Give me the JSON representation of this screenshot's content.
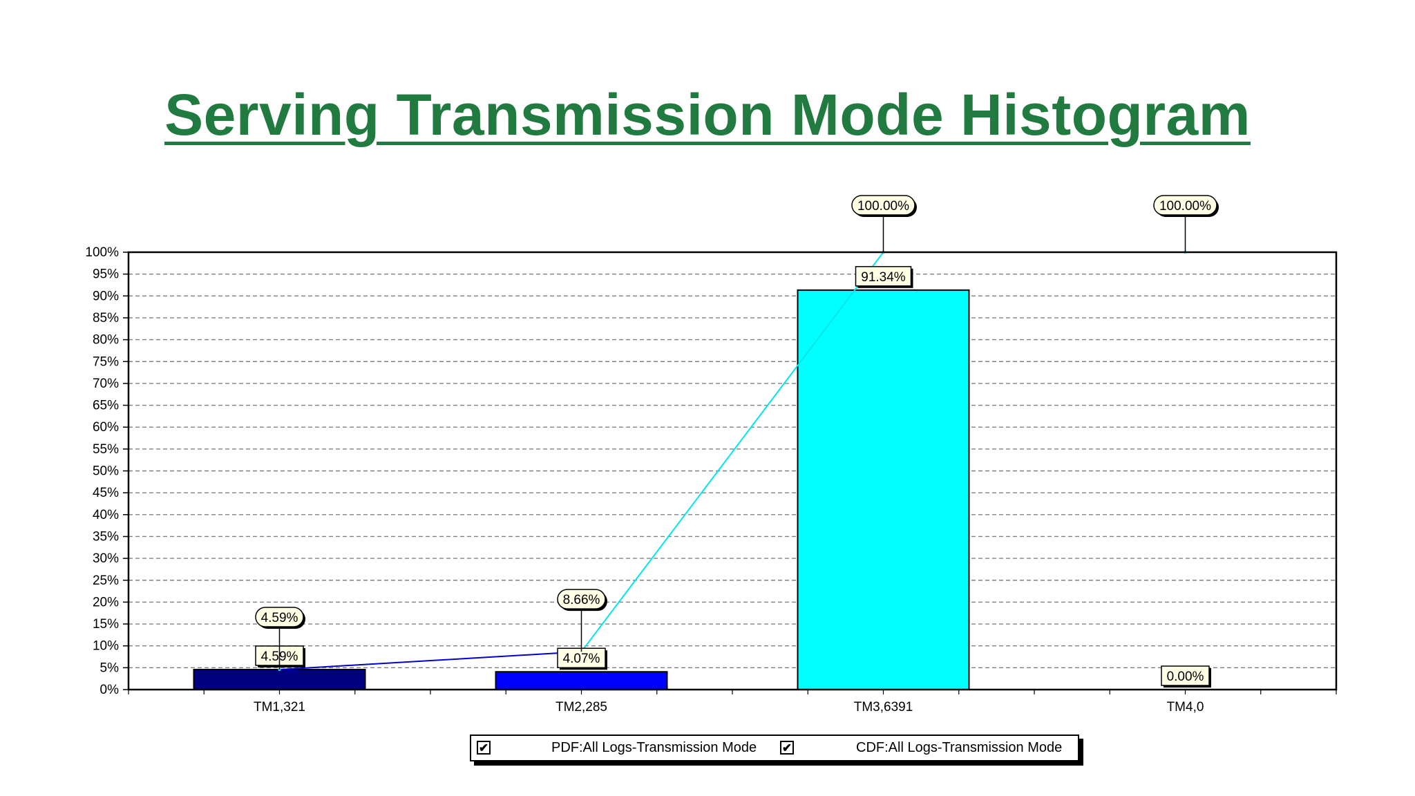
{
  "title": "Serving Transmission Mode Histogram",
  "chart_data": {
    "type": "bar",
    "categories": [
      "TM1,321",
      "TM2,285",
      "TM3,6391",
      "TM4,0"
    ],
    "series": [
      {
        "name": "PDF:All Logs-Transmission Mode",
        "type": "bar",
        "values": [
          4.59,
          4.07,
          91.34,
          0.0
        ],
        "labels": [
          "4.59%",
          "4.07%",
          "91.34%",
          "0.00%"
        ],
        "colors": [
          "#000080",
          "#0000ff",
          "#00ffff",
          "#000000"
        ]
      },
      {
        "name": "CDF:All Logs-Transmission Mode",
        "type": "line",
        "values": [
          4.59,
          8.66,
          100.0,
          100.0
        ],
        "labels": [
          "4.59%",
          "8.66%",
          "100.00%",
          "100.00%"
        ],
        "color": "#00e5ee"
      }
    ],
    "ylim": [
      0,
      100
    ],
    "yticks": [
      "0%",
      "5%",
      "10%",
      "15%",
      "20%",
      "25%",
      "30%",
      "35%",
      "40%",
      "45%",
      "50%",
      "55%",
      "60%",
      "65%",
      "70%",
      "75%",
      "80%",
      "85%",
      "90%",
      "95%",
      "100%"
    ],
    "grid": true,
    "legend_position": "bottom"
  },
  "legend": {
    "items": [
      {
        "label": "PDF:All Logs-Transmission Mode",
        "checkmark": "✔"
      },
      {
        "label": "CDF:All Logs-Transmission Mode",
        "checkmark": "✔"
      }
    ]
  }
}
